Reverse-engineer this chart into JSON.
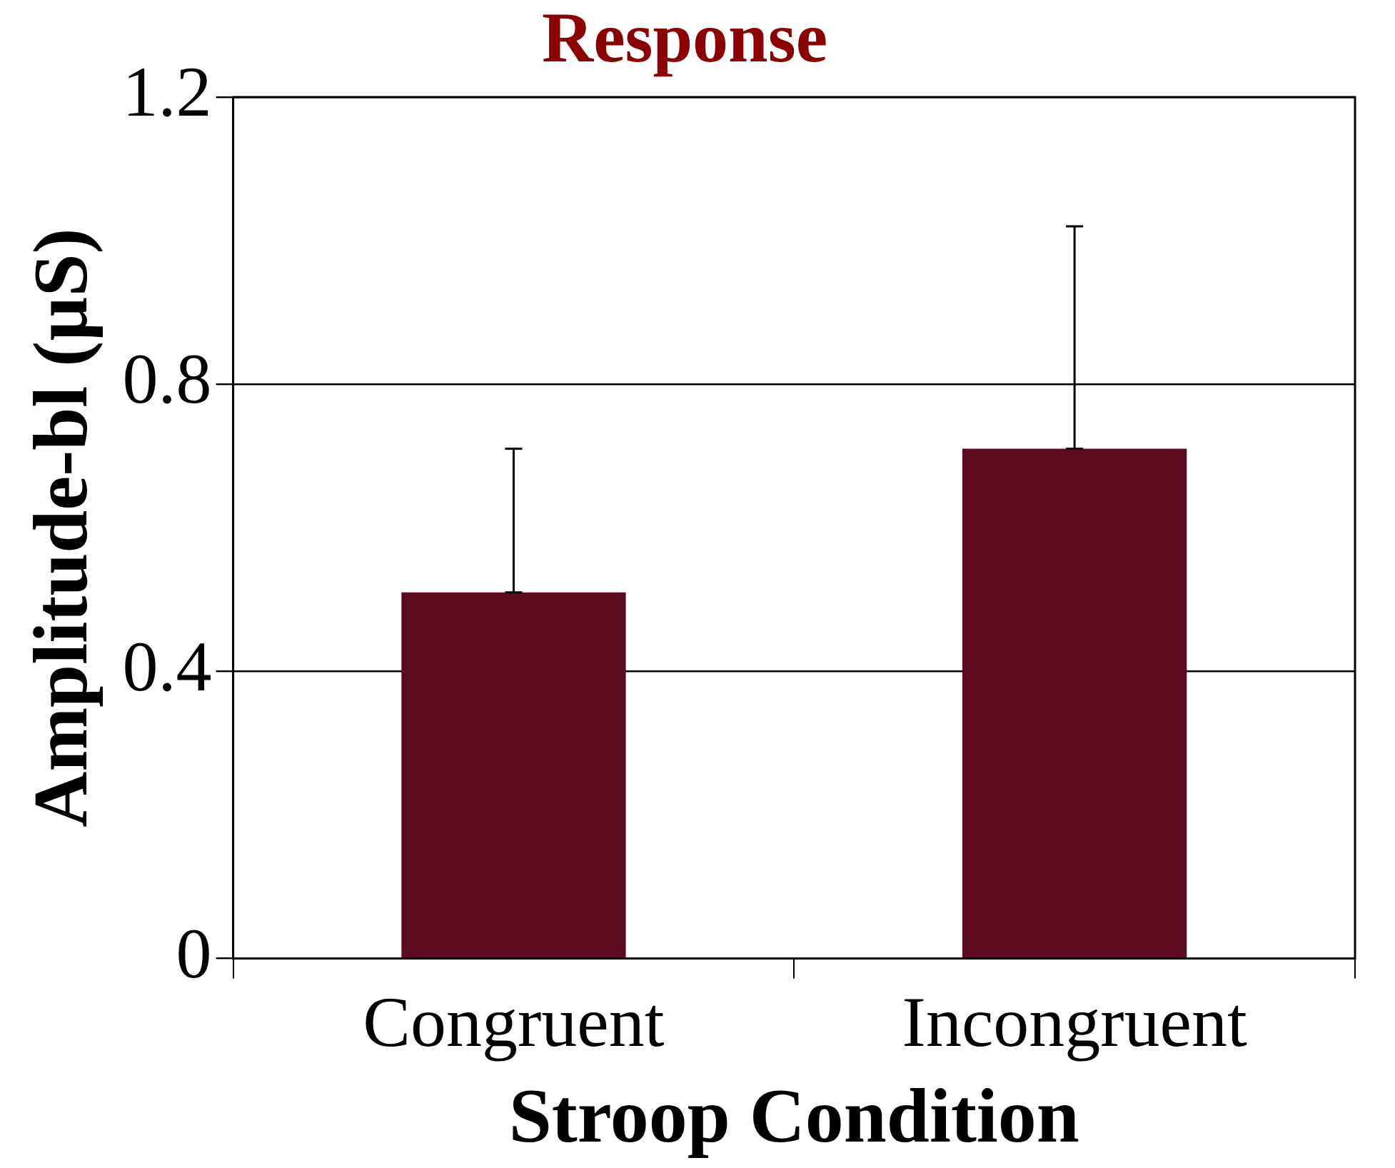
{
  "chart_data": {
    "type": "bar",
    "title": "Response",
    "xlabel": "Stroop Condition",
    "ylabel": "Amplitude-bl (µS)",
    "categories": [
      "Congruent",
      "Incongruent"
    ],
    "series": [
      {
        "color": "#5c0a1e",
        "values": [
          0.51,
          0.71
        ],
        "errors": [
          [
            0.51,
            0.71
          ],
          [
            0.71,
            1.02
          ]
        ]
      }
    ],
    "ylim": [
      0,
      1.2
    ],
    "yticks": [
      0,
      0.4,
      0.8,
      1.2
    ],
    "grid": "y",
    "legend": false
  }
}
